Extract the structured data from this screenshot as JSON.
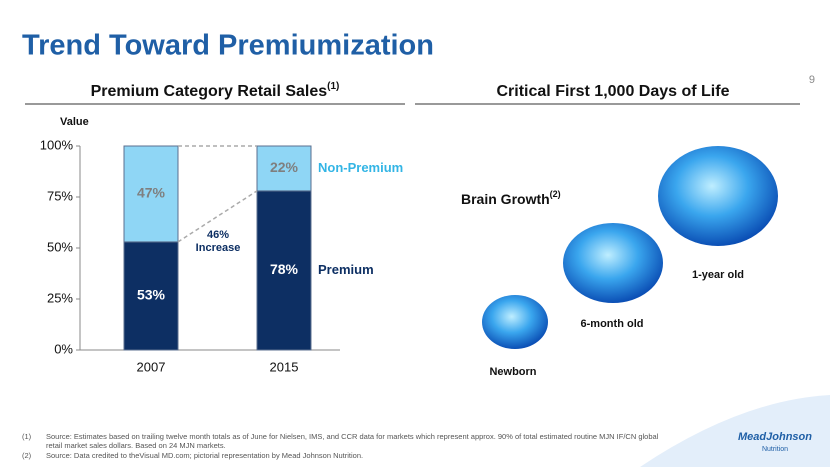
{
  "title": "Trend Toward Premiumization",
  "page_number": "9",
  "chart_data": {
    "type": "bar",
    "stacked": true,
    "title": "Premium Category Retail Sales",
    "title_note": "(1)",
    "ylabel": "Value",
    "categories": [
      "2007",
      "2015"
    ],
    "series": [
      {
        "name": "Premium",
        "color": "#0d2f63",
        "values": [
          53,
          78
        ],
        "value_labels": [
          "53%",
          "78%"
        ]
      },
      {
        "name": "Non-Premium",
        "color": "#8fd6f5",
        "values": [
          47,
          22
        ],
        "value_labels": [
          "47%",
          "22%"
        ]
      }
    ],
    "ylim": [
      0,
      100
    ],
    "yticks": [
      {
        "value": 0,
        "label": "0%"
      },
      {
        "value": 25,
        "label": "25%"
      },
      {
        "value": 50,
        "label": "50%"
      },
      {
        "value": 75,
        "label": "75%"
      },
      {
        "value": 100,
        "label": "100%"
      }
    ],
    "annotation": [
      "46%",
      "Increase"
    ]
  },
  "brain_section": {
    "title": "Critical First 1,000 Days of Life",
    "subtitle": "Brain Growth",
    "subtitle_note": "(2)",
    "stages": [
      "Newborn",
      "6-month old",
      "1-year old"
    ]
  },
  "footnotes": [
    {
      "marker": "(1)",
      "text": "Source: Estimates based on trailing twelve month totals as of June for Nielsen, IMS, and CCR data for markets which represent approx. 90% of total estimated routine MJN IF/CN global retail market sales dollars.  Based on 24 MJN markets."
    },
    {
      "marker": "(2)",
      "text": "Source: Data credited to theVisual MD.com; pictorial representation by Mead Johnson Nutrition."
    }
  ],
  "logo": [
    "MeadJohnson",
    "Nutrition"
  ]
}
